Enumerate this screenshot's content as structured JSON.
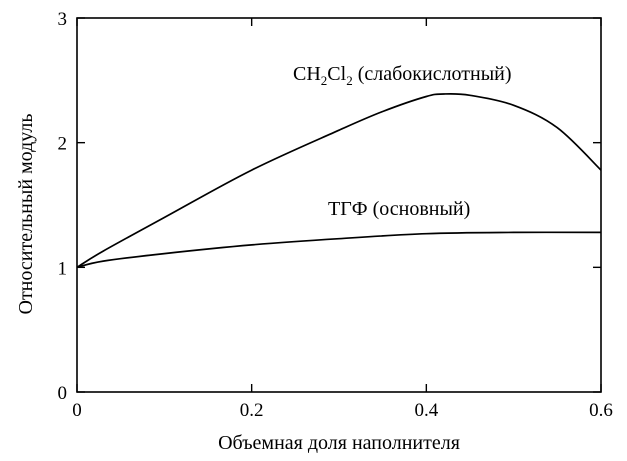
{
  "chart_data": {
    "type": "line",
    "title": "",
    "xlabel": "Объемная доля наполнителя",
    "ylabel": "Относительный модуль",
    "xlim": [
      0,
      0.6
    ],
    "ylim": [
      0,
      3
    ],
    "x_ticks": [
      "0",
      "0.2",
      "0.4",
      "0.6"
    ],
    "y_ticks": [
      "0",
      "1",
      "2",
      "3"
    ],
    "grid": false,
    "legend": "none",
    "series": [
      {
        "name_parts": [
          "CH",
          "2",
          "Cl",
          "2",
          " (слабокислотный)"
        ],
        "x": [
          0,
          0.03,
          0.1,
          0.2,
          0.3,
          0.35,
          0.4,
          0.42,
          0.45,
          0.5,
          0.55,
          0.6
        ],
        "y": [
          1.0,
          1.13,
          1.4,
          1.78,
          2.1,
          2.25,
          2.37,
          2.39,
          2.38,
          2.3,
          2.12,
          1.78
        ]
      },
      {
        "name": "ТГФ (основный)",
        "x": [
          0,
          0.03,
          0.1,
          0.2,
          0.3,
          0.4,
          0.5,
          0.6
        ],
        "y": [
          1.0,
          1.05,
          1.11,
          1.18,
          1.23,
          1.27,
          1.28,
          1.28
        ]
      }
    ]
  }
}
